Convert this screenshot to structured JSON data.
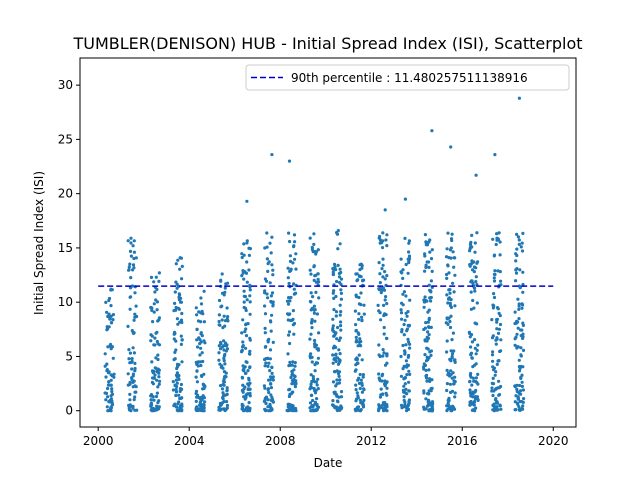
{
  "chart_data": {
    "type": "scatter",
    "title": "TUMBLER(DENISON) HUB - Initial Spread Index (ISI), Scatterplot",
    "xlabel": "Date",
    "ylabel": "Initial Spread Index (ISI)",
    "xlim": [
      1999.2,
      2021.0
    ],
    "ylim": [
      -1.5,
      32.5
    ],
    "x_ticks": [
      "2000",
      "2004",
      "2008",
      "2012",
      "2016",
      "2020"
    ],
    "x_tick_values": [
      2000,
      2004,
      2008,
      2012,
      2016,
      2020
    ],
    "y_ticks": [
      "0",
      "5",
      "10",
      "15",
      "20",
      "25",
      "30"
    ],
    "y_tick_values": [
      0,
      5,
      10,
      15,
      20,
      25,
      30
    ],
    "grid": false,
    "legend_position": "top-right",
    "reference_line": {
      "label": "90th percentile : 11.480257511138916",
      "value": 11.480257511138916,
      "x_start": 2000.0,
      "x_end": 2020.0,
      "color": "#0000cc",
      "style": "dashed"
    },
    "series": [
      {
        "color": "#1f77b4",
        "season_clusters": [
          {
            "year": 2000,
            "x_start": 2000.3,
            "x_end": 2000.7,
            "max": 11.2,
            "n": 70
          },
          {
            "year": 2001,
            "x_start": 2001.3,
            "x_end": 2001.7,
            "max": 15.9,
            "n": 80
          },
          {
            "year": 2002,
            "x_start": 2002.3,
            "x_end": 2002.7,
            "max": 12.7,
            "n": 85
          },
          {
            "year": 2003,
            "x_start": 2003.3,
            "x_end": 2003.7,
            "max": 14.1,
            "n": 95
          },
          {
            "year": 2004,
            "x_start": 2004.3,
            "x_end": 2004.7,
            "max": 11.0,
            "n": 85
          },
          {
            "year": 2005,
            "x_start": 2005.3,
            "x_end": 2005.7,
            "max": 12.6,
            "n": 90
          },
          {
            "year": 2006,
            "x_start": 2006.3,
            "x_end": 2006.7,
            "max": 19.3,
            "n": 110
          },
          {
            "year": 2007,
            "x_start": 2007.3,
            "x_end": 2007.7,
            "max": 23.6,
            "n": 100
          },
          {
            "year": 2008,
            "x_start": 2008.3,
            "x_end": 2008.7,
            "max": 23.0,
            "n": 100
          },
          {
            "year": 2009,
            "x_start": 2009.3,
            "x_end": 2009.7,
            "max": 16.3,
            "n": 105
          },
          {
            "year": 2010,
            "x_start": 2010.3,
            "x_end": 2010.7,
            "max": 16.6,
            "n": 110
          },
          {
            "year": 2011,
            "x_start": 2011.3,
            "x_end": 2011.7,
            "max": 13.5,
            "n": 95
          },
          {
            "year": 2012,
            "x_start": 2012.3,
            "x_end": 2012.7,
            "max": 18.5,
            "n": 100
          },
          {
            "year": 2013,
            "x_start": 2013.3,
            "x_end": 2013.7,
            "max": 19.5,
            "n": 95
          },
          {
            "year": 2014,
            "x_start": 2014.3,
            "x_end": 2014.7,
            "max": 25.8,
            "n": 115
          },
          {
            "year": 2015,
            "x_start": 2015.3,
            "x_end": 2015.7,
            "max": 24.3,
            "n": 100
          },
          {
            "year": 2016,
            "x_start": 2016.3,
            "x_end": 2016.7,
            "max": 21.7,
            "n": 105
          },
          {
            "year": 2017,
            "x_start": 2017.3,
            "x_end": 2017.7,
            "max": 23.6,
            "n": 100
          },
          {
            "year": 2018,
            "x_start": 2018.3,
            "x_end": 2018.7,
            "max": 28.8,
            "n": 100
          }
        ]
      }
    ]
  }
}
